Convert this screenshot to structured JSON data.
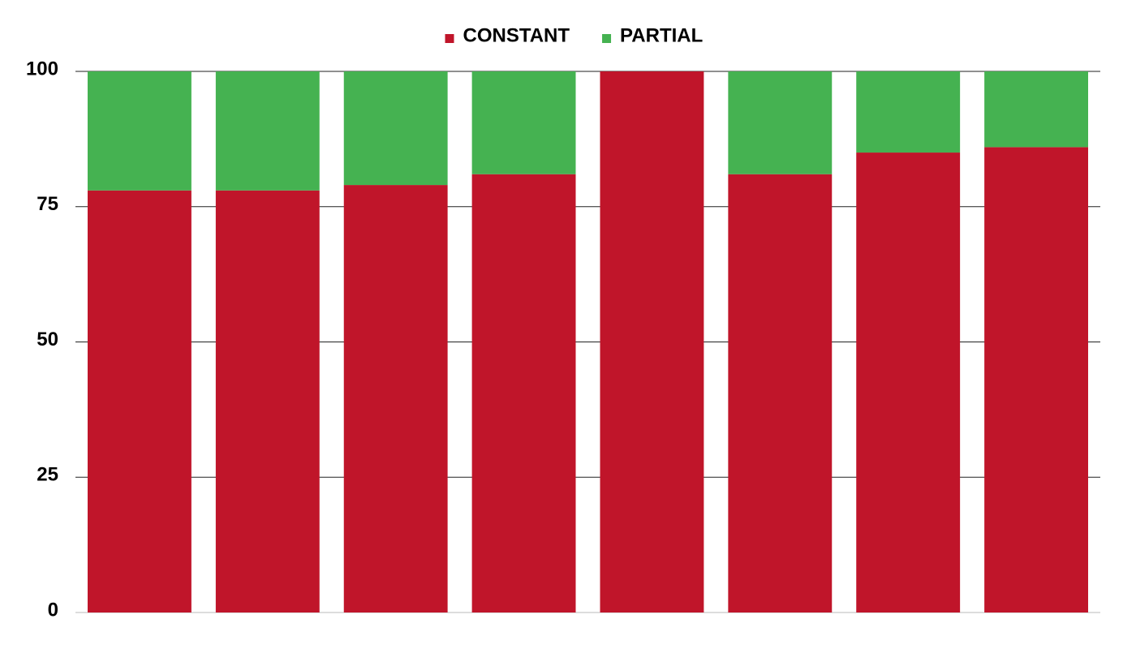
{
  "chart_data": {
    "type": "stacked_bar",
    "categories": [
      null,
      null,
      null,
      null,
      null,
      null,
      null,
      null
    ],
    "series": [
      {
        "name": "CONSTANT",
        "color": "#c0152a",
        "values": [
          78,
          78,
          79,
          81,
          100,
          81,
          85,
          86
        ]
      },
      {
        "name": "PARTIAL",
        "color": "#45b251",
        "values": [
          22,
          22,
          21,
          19,
          0,
          19,
          15,
          14
        ]
      }
    ],
    "ylim": [
      0,
      100
    ],
    "yticks": [
      0,
      25,
      50,
      75,
      100
    ],
    "grid": true,
    "legend": "top"
  }
}
